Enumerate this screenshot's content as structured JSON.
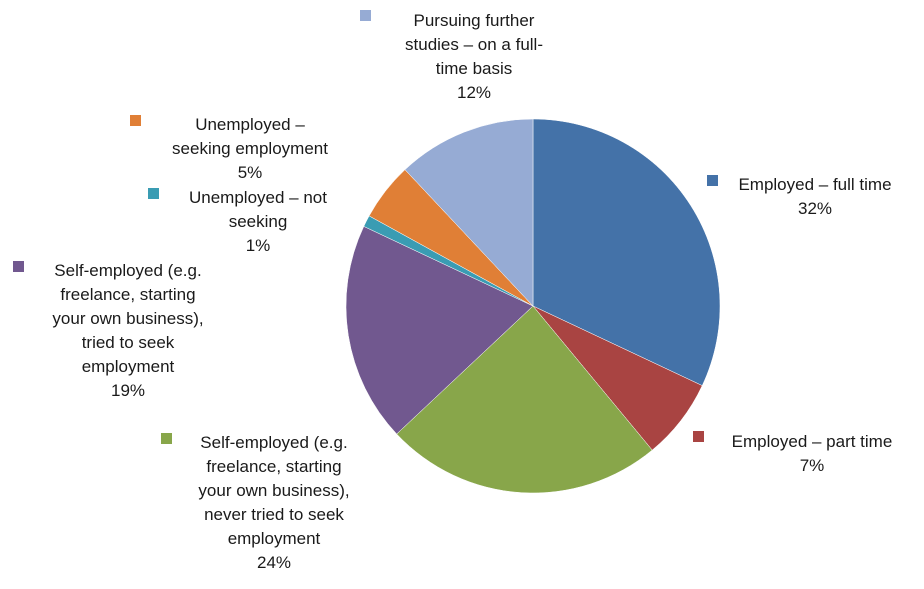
{
  "chart_data": {
    "type": "pie",
    "title": "",
    "start_angle_deg": 0,
    "direction": "clockwise",
    "slices": [
      {
        "name": "Employed – full time",
        "label_lines": [
          "Employed – full time"
        ],
        "value": 32,
        "percent_label": "32%",
        "color": "#4472A8"
      },
      {
        "name": "Employed – part time",
        "label_lines": [
          "Employed – part time"
        ],
        "value": 7,
        "percent_label": "7%",
        "color": "#A94442"
      },
      {
        "name": "Self-employed (e.g. freelance, starting your own business), never tried to seek employment",
        "label_lines": [
          "Self-employed (e.g.",
          "freelance, starting",
          "your own business),",
          "never tried to seek",
          "employment"
        ],
        "value": 24,
        "percent_label": "24%",
        "color": "#88A64A"
      },
      {
        "name": "Self-employed (e.g. freelance, starting your own business), tried to seek employment",
        "label_lines": [
          "Self-employed (e.g.",
          "freelance, starting",
          "your own business),",
          "tried to seek",
          "employment"
        ],
        "value": 19,
        "percent_label": "19%",
        "color": "#71588F"
      },
      {
        "name": "Unemployed – not seeking",
        "label_lines": [
          "Unemployed – not",
          "seeking"
        ],
        "value": 1,
        "percent_label": "1%",
        "color": "#3A9CB3"
      },
      {
        "name": "Unemployed – seeking employment",
        "label_lines": [
          "Unemployed –",
          "seeking employment"
        ],
        "value": 5,
        "percent_label": "5%",
        "color": "#E07F36"
      },
      {
        "name": "Pursuing further studies – on a full-time basis",
        "label_lines": [
          "Pursuing further",
          "studies – on a full-",
          "time basis"
        ],
        "value": 12,
        "percent_label": "12%",
        "color": "#96ABD4"
      }
    ]
  }
}
